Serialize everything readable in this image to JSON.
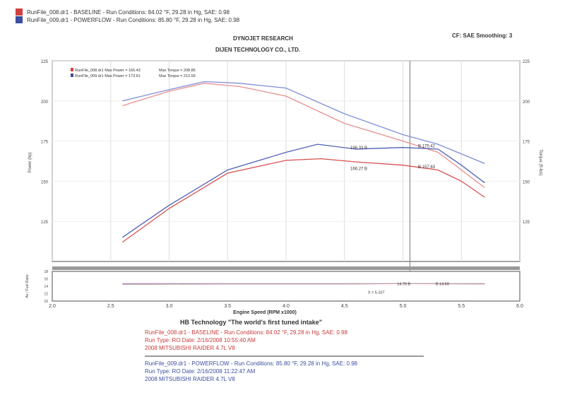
{
  "header": {
    "runs": [
      {
        "text": "RunFile_008.dr1 - BASELINE - Run Conditions: 84.02 °F, 29.28 in Hg, SAE: 0.98",
        "color": "#d04040"
      },
      {
        "text": "RunFile_009.dr1 - POWERFLOW - Run Conditions: 85.80 °F, 29.28 in Hg, SAE: 0.98",
        "color": "#3c4ea0"
      }
    ],
    "title1": "DYNOJET RESEARCH",
    "title2": "DIJEN TECHNOLOGY CO., LTD.",
    "settings": "CF: SAE  Smoothing: 3"
  },
  "chart_data": [
    {
      "type": "line",
      "xlabel": "Engine Speed (RPM x1000)",
      "ylabel": "Power (hp)",
      "y2label": "Torque (ft-lbs)",
      "xlim": [
        2.0,
        6.0
      ],
      "ylim": [
        100,
        225
      ],
      "xticks": [
        "2.0",
        "2.5",
        "3.0",
        "3.5",
        "4.0",
        "4.5",
        "5.0",
        "5.5",
        "6.0"
      ],
      "yticks": [
        "225",
        "200",
        "175",
        "150",
        "125"
      ],
      "y2ticks": [
        "225",
        "200",
        "175",
        "150",
        "125"
      ],
      "grid": true,
      "legend": [
        {
          "text": "RunFile_008.dr1 Max Power = 166.43",
          "torque": "Max Torque = 208.86",
          "color": "#d04040"
        },
        {
          "text": "RunFile_009.dr1 Max Power = 173.61",
          "torque": "Max Torque = 212.59",
          "color": "#3c4ea0"
        }
      ],
      "legend_position": "top-left",
      "cursor_x": 5.06,
      "cursor_labels": [
        {
          "text": "196.33 B",
          "color": "#3c4ea0",
          "x": 4.55,
          "y": 170
        },
        {
          "text": "B 175.42",
          "color": "#3c4ea0",
          "x": 5.13,
          "y": 171
        },
        {
          "text": "166.27 B",
          "color": "#d04040",
          "x": 4.55,
          "y": 157
        },
        {
          "text": "B 157.63",
          "color": "#d04040",
          "x": 5.13,
          "y": 158
        }
      ],
      "series": [
        {
          "kind": "torque",
          "color": "#7f8fd6",
          "x": [
            2.6,
            3.0,
            3.3,
            3.6,
            4.0,
            4.5,
            5.0,
            5.3,
            5.7
          ],
          "y": [
            200,
            207,
            212,
            211,
            208,
            192,
            179,
            173,
            161
          ]
        },
        {
          "kind": "torque",
          "color": "#e89090",
          "x": [
            2.6,
            3.0,
            3.3,
            3.6,
            4.0,
            4.5,
            5.0,
            5.3,
            5.7
          ],
          "y": [
            197,
            206,
            211,
            209,
            203,
            186,
            175,
            168,
            146
          ]
        },
        {
          "kind": "power",
          "color": "#5060b8",
          "x": [
            2.6,
            3.0,
            3.5,
            4.0,
            4.27,
            4.6,
            5.0,
            5.3,
            5.5,
            5.7
          ],
          "y": [
            115,
            135,
            157,
            168,
            173,
            170,
            171,
            170,
            160,
            149
          ]
        },
        {
          "kind": "power",
          "color": "#d85050",
          "x": [
            2.6,
            3.0,
            3.5,
            4.0,
            4.3,
            4.6,
            5.0,
            5.3,
            5.5,
            5.7
          ],
          "y": [
            112,
            133,
            155,
            163,
            164,
            162,
            160,
            157,
            150,
            140
          ]
        }
      ]
    },
    {
      "type": "line",
      "ylabel": "Air / Fuel Ratio",
      "ylim": [
        10,
        18
      ],
      "yticks": [
        "18",
        "16",
        "14",
        "12",
        "10"
      ],
      "labels": [
        {
          "text": "14.70 B",
          "x": 4.95,
          "y": 14.7
        },
        {
          "text": "B 14.69",
          "x": 5.28,
          "y": 14.7
        },
        {
          "text": "X = 5.107",
          "x": 4.7,
          "y": 12.4
        }
      ],
      "series": [
        {
          "color": "#8a8ac8",
          "x": [
            2.6,
            3.5,
            4.5,
            5.0,
            5.7
          ],
          "y": [
            14.7,
            14.7,
            14.7,
            14.7,
            14.7
          ]
        },
        {
          "color": "#c8a0a0",
          "x": [
            2.6,
            3.5,
            4.5,
            5.0,
            5.7
          ],
          "y": [
            14.5,
            14.6,
            14.6,
            14.7,
            14.6
          ]
        }
      ]
    }
  ],
  "footer": {
    "title": "HB Technology \"The world's first tuned intake\"",
    "run1": [
      "RunFile_008.dr1 - BASELINE - Run Conditions: 84.02 °F, 29.28 in Hg, SAE: 0.98",
      "Run Type: RO  Date: 2/16/2008 10:55:40 AM",
      "2008 MITSUBISHI RAIDER 4.7L V8"
    ],
    "run2": [
      "RunFile_009.dr1 - POWERFLOW - Run Conditions: 85.80 °F, 29.28 in Hg, SAE: 0.98",
      "Run Type: RO  Date: 2/16/2008 11:22:47 AM",
      "2008 MITSUBISHI RAIDER 4.7L V8"
    ]
  }
}
